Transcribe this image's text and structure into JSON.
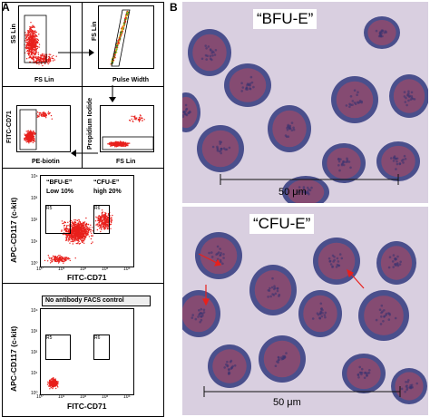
{
  "panels": {
    "a_label": "A",
    "b_label": "B"
  },
  "p1": {
    "ylabel": "SS Lin",
    "xlabel": "FS Lin"
  },
  "p2": {
    "ylabel": "FS Lin",
    "xlabel": "Pulse Width"
  },
  "p3": {
    "ylabel": "FITC-CD71",
    "xlabel": "PE-biotin"
  },
  "p4": {
    "ylabel": "Propidium Iodide",
    "xlabel": "FS Lin"
  },
  "p5": {
    "ylabel": "APC-CD117 (c-kit)",
    "xlabel": "FITC-CD71",
    "bfu_label": "“BFU-E”",
    "bfu_pct": "Low 10%",
    "cfu_label": "“CFU-E”",
    "cfu_pct": "high 20%",
    "gate_r5": "R5",
    "gate_r6": "R6",
    "xticks": [
      "10⁰",
      "10¹",
      "10²",
      "10³",
      "10⁴"
    ],
    "yticks": [
      "10⁰",
      "10¹",
      "10²",
      "10³",
      "10⁴"
    ]
  },
  "p6": {
    "title": "No antibody FACS control",
    "ylabel": "APC-CD117 (c-kit)",
    "xlabel": "FITC-CD71",
    "gate_r5": "R5",
    "gate_r6": "R6",
    "xticks": [
      "10⁰",
      "10¹",
      "10²",
      "10³",
      "10⁴"
    ],
    "yticks": [
      "10⁰",
      "10¹",
      "10²",
      "10³",
      "10⁴"
    ]
  },
  "micrographs": {
    "top_title": "“BFU-E”",
    "top_scale": "50 μm",
    "bottom_title": "“CFU-E”",
    "bottom_scale": "50 μm"
  },
  "colors": {
    "dots": "#e8201c",
    "stain_bg": "#d9cfe0",
    "cell_dark": "#4a4f8c",
    "cell_red": "#9a4a6a"
  }
}
